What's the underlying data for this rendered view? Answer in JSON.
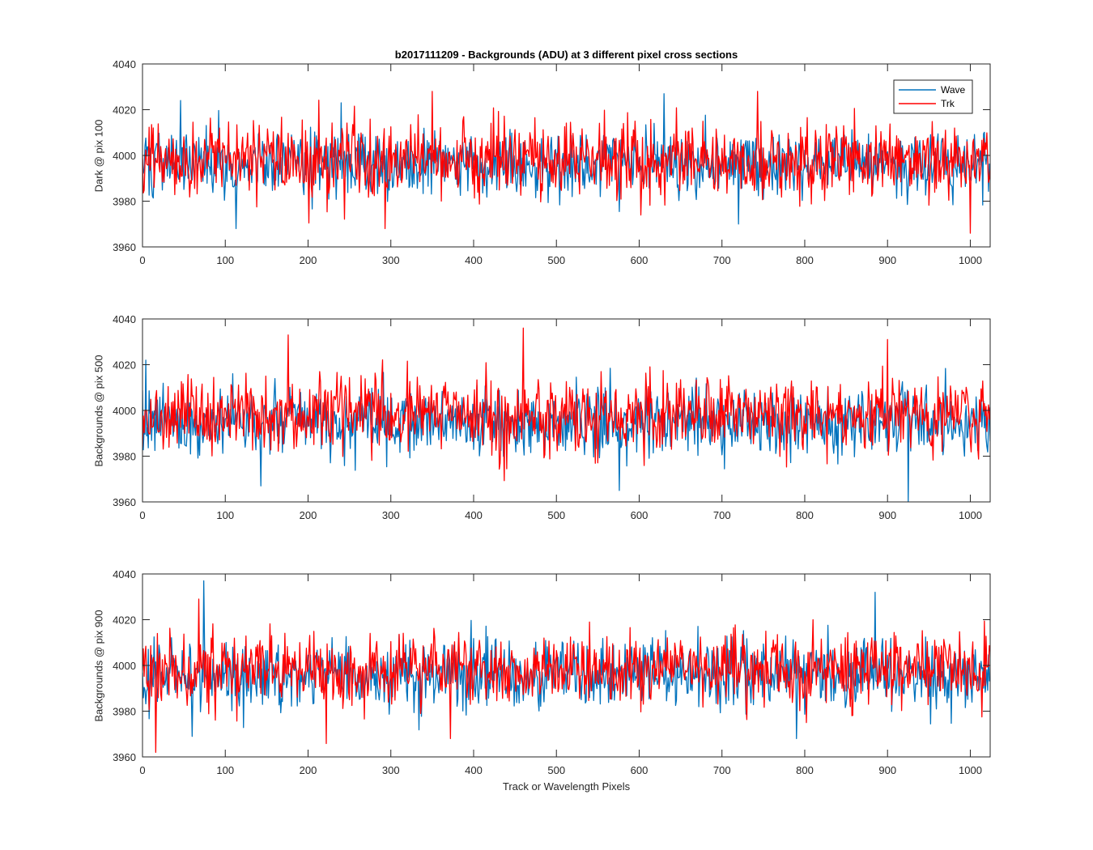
{
  "figure": {
    "title": "b2017111209 - Backgrounds (ADU) at 3 different pixel cross sections",
    "xlabel": "Track or Wavelength Pixels"
  },
  "legend": {
    "items": [
      {
        "label": "Wave",
        "color": "#0072BD"
      },
      {
        "label": "Trk",
        "color": "#FF0000"
      }
    ],
    "placement": "top-right of first subplot"
  },
  "chart_data": [
    {
      "type": "line",
      "ylabel": "Dark @ pix 100",
      "xlim": [
        0,
        1024
      ],
      "ylim": [
        3960,
        4040
      ],
      "xticks": [
        0,
        100,
        200,
        300,
        400,
        500,
        600,
        700,
        800,
        900,
        1000
      ],
      "yticks": [
        3960,
        3980,
        4000,
        4020,
        4040
      ],
      "series_summary": [
        {
          "name": "Wave",
          "color": "#0072BD",
          "mean": 3997,
          "noise_sd": 7,
          "peaks": [
            [
              46,
              4024
            ],
            [
              240,
              4023
            ],
            [
              630,
              4027
            ],
            [
              113,
              3968
            ],
            [
              720,
              3970
            ]
          ]
        },
        {
          "name": "Trk",
          "color": "#FF0000",
          "mean": 3998,
          "noise_sd": 8,
          "peaks": [
            [
              350,
              4028
            ],
            [
              743,
              4028
            ],
            [
              1000,
              3966
            ],
            [
              293,
              3968
            ]
          ]
        }
      ],
      "seed": 101
    },
    {
      "type": "line",
      "ylabel": "Backgrounds @ pix 500",
      "xlim": [
        0,
        1024
      ],
      "ylim": [
        3960,
        4040
      ],
      "xticks": [
        0,
        100,
        200,
        300,
        400,
        500,
        600,
        700,
        800,
        900,
        1000
      ],
      "yticks": [
        3960,
        3980,
        4000,
        4020,
        4040
      ],
      "series_summary": [
        {
          "name": "Wave",
          "color": "#0072BD",
          "mean": 3995,
          "noise_sd": 7,
          "peaks": [
            [
              4,
              4022
            ],
            [
              576,
              3965
            ],
            [
              925,
              3960
            ],
            [
              143,
              3967
            ]
          ]
        },
        {
          "name": "Trk",
          "color": "#FF0000",
          "mean": 3998,
          "noise_sd": 8,
          "peaks": [
            [
              176,
              4033
            ],
            [
              460,
              4036
            ],
            [
              900,
              4031
            ]
          ]
        }
      ],
      "seed": 202
    },
    {
      "type": "line",
      "ylabel": "Backgrounds @ pix 900",
      "xlim": [
        0,
        1024
      ],
      "ylim": [
        3960,
        4040
      ],
      "xticks": [
        0,
        100,
        200,
        300,
        400,
        500,
        600,
        700,
        800,
        900,
        1000
      ],
      "yticks": [
        3960,
        3980,
        4000,
        4020,
        4040
      ],
      "series_summary": [
        {
          "name": "Wave",
          "color": "#0072BD",
          "mean": 3996,
          "noise_sd": 7,
          "peaks": [
            [
              74,
              4037
            ],
            [
              885,
              4032
            ],
            [
              60,
              3969
            ],
            [
              790,
              3968
            ]
          ]
        },
        {
          "name": "Trk",
          "color": "#FF0000",
          "mean": 3998,
          "noise_sd": 8,
          "peaks": [
            [
              68,
              4029
            ],
            [
              16,
              3962
            ],
            [
              372,
              3968
            ]
          ]
        }
      ],
      "seed": 303
    }
  ]
}
